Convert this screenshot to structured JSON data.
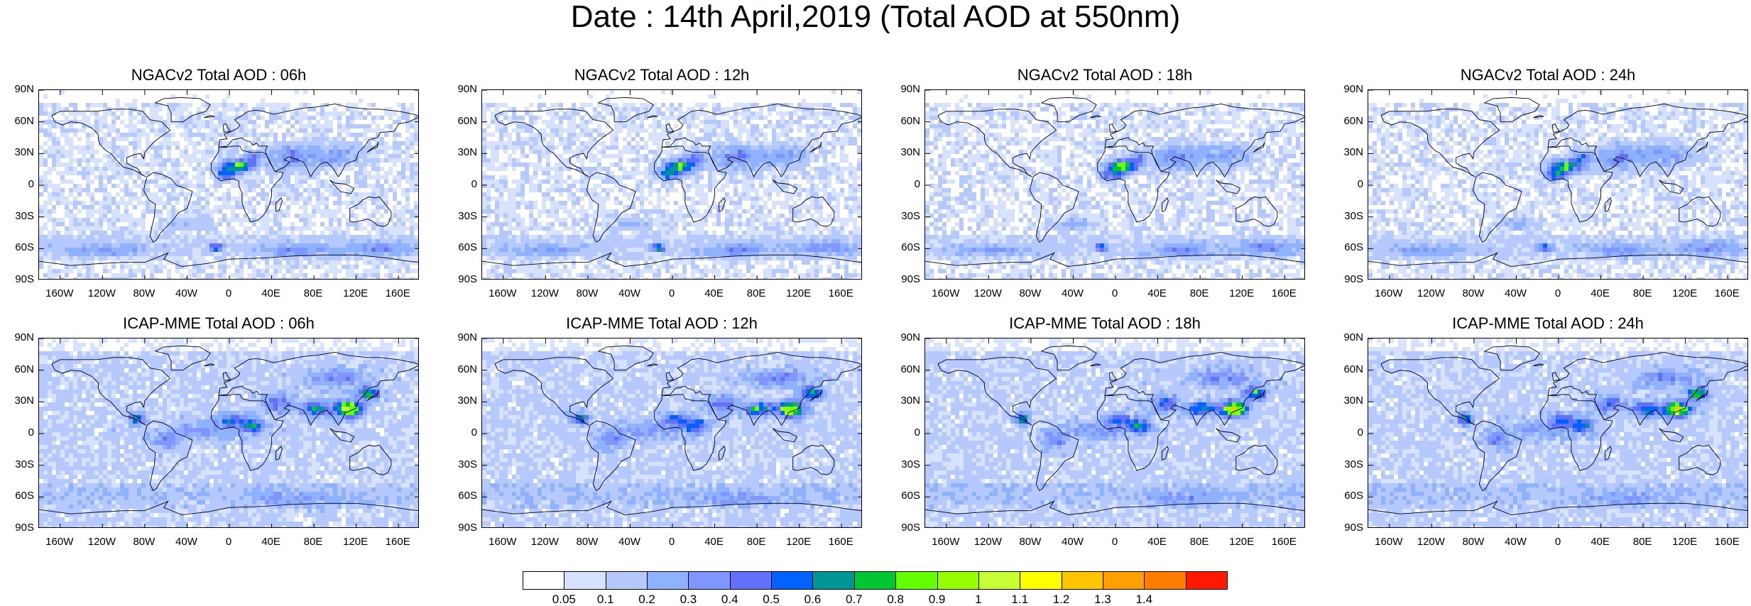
{
  "title": "Date : 14th April,2019 (Total AOD at 550nm)",
  "axes": {
    "lat_labels": [
      "90N",
      "60N",
      "30N",
      "0",
      "30S",
      "60S",
      "90S"
    ],
    "lon_labels": [
      "160W",
      "120W",
      "80W",
      "40W",
      "0",
      "40E",
      "80E",
      "120E",
      "160E"
    ]
  },
  "panels": [
    {
      "title": "NGACv2 Total AOD : 06h",
      "model": "NGACv2",
      "hour": "06h"
    },
    {
      "title": "NGACv2 Total AOD : 12h",
      "model": "NGACv2",
      "hour": "12h"
    },
    {
      "title": "NGACv2 Total AOD : 18h",
      "model": "NGACv2",
      "hour": "18h"
    },
    {
      "title": "NGACv2 Total AOD : 24h",
      "model": "NGACv2",
      "hour": "24h"
    },
    {
      "title": "ICAP-MME Total AOD : 06h",
      "model": "ICAP-MME",
      "hour": "06h"
    },
    {
      "title": "ICAP-MME Total AOD : 12h",
      "model": "ICAP-MME",
      "hour": "12h"
    },
    {
      "title": "ICAP-MME Total AOD : 18h",
      "model": "ICAP-MME",
      "hour": "18h"
    },
    {
      "title": "ICAP-MME Total AOD : 24h",
      "model": "ICAP-MME",
      "hour": "24h"
    }
  ],
  "colorbar": {
    "labels": [
      "0.05",
      "0.1",
      "0.2",
      "0.3",
      "0.4",
      "0.5",
      "0.6",
      "0.7",
      "0.8",
      "0.9",
      "1",
      "1.1",
      "1.2",
      "1.3",
      "1.4"
    ],
    "colors": [
      "#ffffff",
      "#d6e2ff",
      "#b5c9ff",
      "#8fb2ff",
      "#7f96ff",
      "#6370f8",
      "#0062ff",
      "#009696",
      "#00c633",
      "#63ff00",
      "#96ff00",
      "#c6ff33",
      "#ffff00",
      "#ffc600",
      "#ffa000",
      "#ff7c00",
      "#ff1900"
    ]
  }
}
